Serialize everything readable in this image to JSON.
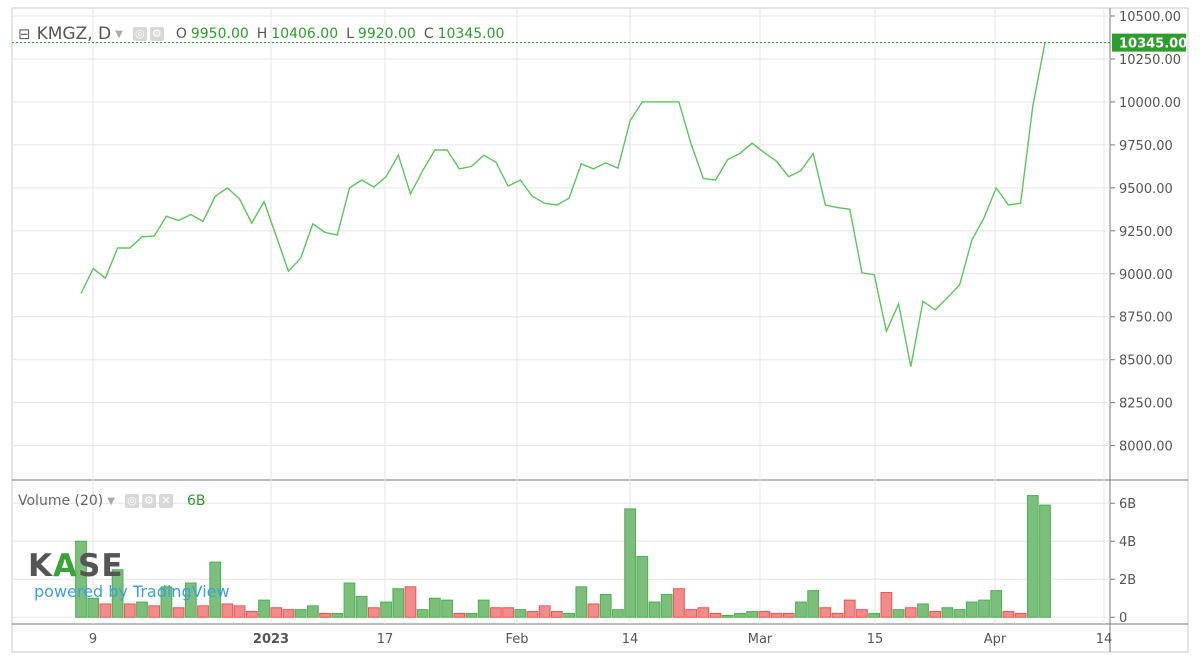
{
  "legend": {
    "symbol": "KMGZ, D",
    "open_label": "O",
    "open": "9950.00",
    "high_label": "H",
    "high": "10406.00",
    "low_label": "L",
    "low": "9920.00",
    "close_label": "C",
    "close": "10345.00"
  },
  "volume_legend": {
    "label": "Volume (20)",
    "value": "6B"
  },
  "watermark": {
    "brand_pre": "K",
    "brand_mid": "A",
    "brand_post": "SE",
    "powered": "powered by TradingView"
  },
  "colors": {
    "up": "#4caf50",
    "up_fill": "#7cbf7c",
    "down": "#ef5350",
    "down_fill": "#f08c8c",
    "grid": "#e6e6e6",
    "line": "#5cc55c"
  },
  "chart_data": [
    {
      "type": "line",
      "title": "",
      "ylim": [
        7800,
        10500
      ],
      "y_ticks": [
        "10500.00",
        "10250.00",
        "10000.00",
        "9750.00",
        "9500.00",
        "9250.00",
        "9000.00",
        "8750.00",
        "8500.00",
        "8250.00",
        "8000.00"
      ],
      "y_tick_values": [
        10500,
        10250,
        10000,
        9750,
        9500,
        9250,
        9000,
        8750,
        8500,
        8250,
        8000
      ],
      "last_price_label": "10345.00",
      "last_price": 10345,
      "x_ticks": [
        "9",
        "2023",
        "17",
        "Feb",
        "14",
        "Mar",
        "15",
        "Apr",
        "14"
      ],
      "series": [
        {
          "values": [
            8885,
            9030,
            8975,
            9150,
            9150,
            9215,
            9220,
            9335,
            9310,
            9345,
            9305,
            9450,
            9500,
            9435,
            9295,
            9420,
            9220,
            9015,
            9090,
            9290,
            9240,
            9225,
            9500,
            9545,
            9505,
            9565,
            9690,
            9465,
            9600,
            9720,
            9720,
            9610,
            9625,
            9690,
            9650,
            9510,
            9545,
            9450,
            9410,
            9400,
            9440,
            9640,
            9610,
            9645,
            9615,
            9890,
            10000,
            10000,
            10000,
            10000,
            9755,
            9555,
            9545,
            9665,
            9700,
            9760,
            9705,
            9655,
            9565,
            9600,
            9700,
            9400,
            9385,
            9375,
            9005,
            8995,
            8665,
            8825,
            8460,
            8840,
            8790,
            8860,
            8935,
            9195,
            9325,
            9500,
            9400,
            9410,
            9975,
            10345
          ]
        }
      ]
    },
    {
      "type": "bar",
      "title": "Volume (20)",
      "ylim": [
        -0.25,
        6.8
      ],
      "y_ticks": [
        "6B",
        "4B",
        "2B",
        "0"
      ],
      "y_tick_values": [
        6,
        4,
        2,
        0
      ],
      "series": [
        {
          "values": [
            4.0,
            1.0,
            0.7,
            2.5,
            0.7,
            0.8,
            0.6,
            1.6,
            0.5,
            1.8,
            0.6,
            2.9,
            0.7,
            0.6,
            0.3,
            0.9,
            0.5,
            0.4,
            0.4,
            0.6,
            0.2,
            0.2,
            1.8,
            1.1,
            0.5,
            0.8,
            1.5,
            1.6,
            0.4,
            1.0,
            0.9,
            0.2,
            0.2,
            0.9,
            0.5,
            0.5,
            0.4,
            0.3,
            0.6,
            0.3,
            0.2,
            1.6,
            0.7,
            1.2,
            0.4,
            5.7,
            3.2,
            0.8,
            1.2,
            1.5,
            0.4,
            0.5,
            0.2,
            0.1,
            0.2,
            0.3,
            0.3,
            0.2,
            0.2,
            0.8,
            1.4,
            0.5,
            0.2,
            0.9,
            0.4,
            0.2,
            1.3,
            0.4,
            0.5,
            0.7,
            0.3,
            0.5,
            0.4,
            0.8,
            0.9,
            1.4,
            0.3,
            0.2,
            6.4,
            5.9
          ],
          "direction": [
            "up",
            "up",
            "down",
            "up",
            "down",
            "up",
            "down",
            "up",
            "down",
            "up",
            "down",
            "up",
            "down",
            "down",
            "down",
            "up",
            "down",
            "down",
            "up",
            "up",
            "down",
            "up",
            "up",
            "up",
            "down",
            "up",
            "up",
            "down",
            "up",
            "up",
            "up",
            "down",
            "up",
            "up",
            "down",
            "down",
            "up",
            "down",
            "down",
            "down",
            "up",
            "up",
            "down",
            "up",
            "up",
            "up",
            "up",
            "up",
            "up",
            "down",
            "down",
            "down",
            "down",
            "up",
            "up",
            "up",
            "down",
            "down",
            "down",
            "up",
            "up",
            "down",
            "down",
            "down",
            "down",
            "up",
            "down",
            "up",
            "down",
            "up",
            "down",
            "up",
            "up",
            "up",
            "up",
            "up",
            "down",
            "down",
            "up",
            "up"
          ]
        }
      ]
    }
  ]
}
